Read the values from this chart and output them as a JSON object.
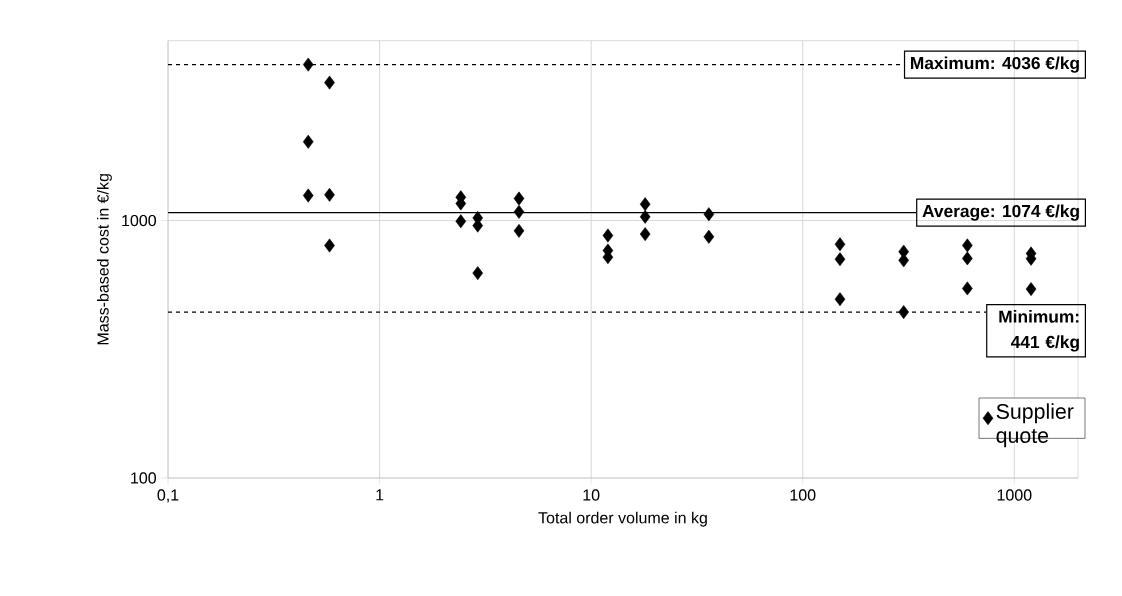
{
  "chart_data": {
    "type": "scatter",
    "xlabel": "Total order volume in kg",
    "ylabel": "Mass-based cost in €/kg",
    "log": "xy",
    "grid": true,
    "marker": "diamond",
    "legend": "bottom right",
    "xlim": [
      0.1,
      2000
    ],
    "ylim": [
      100,
      5000
    ],
    "xticks": [
      {
        "value": 0.1,
        "label": "0,1"
      },
      1,
      10,
      100,
      1000
    ],
    "yticks": [
      100,
      1000
    ],
    "series": [
      {
        "name": "Supplier quote",
        "color": "#000000",
        "x": [
          0.46,
          0.46,
          0.46,
          0.58,
          0.58,
          0.58,
          2.42,
          2.42,
          2.42,
          2.91,
          2.91,
          2.91,
          4.56,
          4.56,
          4.56,
          12,
          12,
          12,
          18,
          18,
          18,
          36,
          36,
          150,
          150,
          150,
          300,
          300,
          300,
          600,
          600,
          600,
          1200,
          1200,
          1200
        ],
        "values": [
          4036,
          2024,
          1251,
          3436,
          1259,
          800,
          1232,
          1165,
          994,
          1024,
          956,
          625,
          1218,
          1081,
          912,
          875,
          765,
          721,
          1158,
          1034,
          886,
          1058,
          865,
          809,
          708,
          495,
          757,
          701,
          441,
          801,
          713,
          545,
          745,
          711,
          542
        ]
      }
    ],
    "ref_lines": [
      {
        "axis": "y",
        "value": 4036,
        "label": "Maximum: 4036 €/kg",
        "line_style": "dashed"
      },
      {
        "axis": "y",
        "value": 1074,
        "label": "Average: 1074 €/kg",
        "line_style": "solid"
      },
      {
        "axis": "y",
        "value": 441,
        "label": "Minimum: 441 €/kg",
        "line_style": "dashed"
      }
    ]
  }
}
